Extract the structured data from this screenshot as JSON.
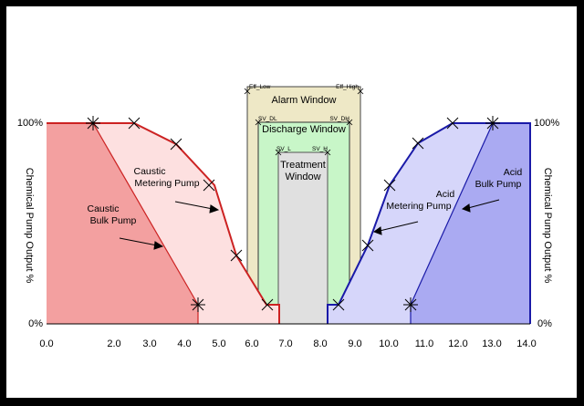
{
  "axis": {
    "x_ticks": [
      "0.0",
      "2.0",
      "3.0",
      "4.0",
      "5.0",
      "6.0",
      "7.0",
      "8.0",
      "9.0",
      "10.0",
      "11.0",
      "12.0",
      "13.0",
      "14.0"
    ],
    "y_left_label": "Chemical Pump Output %",
    "y_right_label": "Chemical Pump Output %",
    "y_top": "100%",
    "y_bottom": "0%"
  },
  "windows": {
    "alarm": {
      "label": "Alarm Window",
      "low": "Eff_Low",
      "high": "Eff_High",
      "color": "#eee8c6"
    },
    "discharge": {
      "label": "Discharge Window",
      "low": "SV_DL",
      "high": "SV_DH",
      "color": "#c8f6c8"
    },
    "treatment": {
      "label_line1": "Treatment",
      "label_line2": "Window",
      "low": "SV_L",
      "high": "SV_H",
      "color": "#e0e0e0"
    }
  },
  "labels": {
    "caustic_metering_1": "Caustic",
    "caustic_metering_2": "Metering Pump",
    "caustic_bulk_1": "Caustic",
    "caustic_bulk_2": "Bulk Pump",
    "acid_metering_1": "Acid",
    "acid_metering_2": "Metering Pump",
    "acid_bulk_1": "Acid",
    "acid_bulk_2": "Bulk Pump"
  },
  "colors": {
    "caustic_bulk": "#f3a0a0",
    "caustic_metering": "#fde0e0",
    "caustic_line": "#cc2222",
    "acid_bulk": "#aaaaf2",
    "acid_metering": "#d6d6fa",
    "acid_line": "#1a1aa8"
  }
}
